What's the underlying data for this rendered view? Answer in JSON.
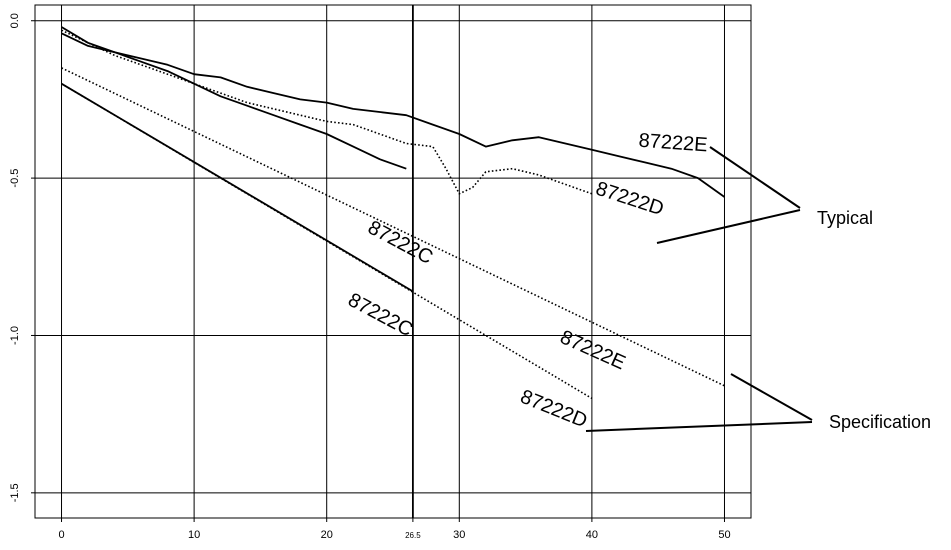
{
  "chart_data": {
    "type": "line",
    "xlabel": "",
    "ylabel": "",
    "xlim": [
      -2,
      52
    ],
    "ylim": [
      -1.58,
      0.05
    ],
    "x_ticks": [
      {
        "v": 0,
        "label": "0"
      },
      {
        "v": 10,
        "label": "10"
      },
      {
        "v": 20,
        "label": "20"
      },
      {
        "v": 26.5,
        "label": "26.5",
        "small": true
      },
      {
        "v": 30,
        "label": "30"
      },
      {
        "v": 40,
        "label": "40"
      },
      {
        "v": 50,
        "label": "50"
      }
    ],
    "y_ticks": [
      {
        "v": 0,
        "label": "0.0"
      },
      {
        "v": -0.5,
        "label": "-0.5"
      },
      {
        "v": -1.0,
        "label": "-1.0"
      },
      {
        "v": -1.5,
        "label": "-1.5"
      }
    ],
    "grid": true,
    "series": [
      {
        "name": "87222C",
        "group": "Specification",
        "style": "solid",
        "x": [
          0,
          26.5
        ],
        "y": [
          -0.2,
          -0.86
        ]
      },
      {
        "name": "87222D",
        "group": "Specification",
        "style": "dotted",
        "x": [
          0,
          40
        ],
        "y": [
          -0.2,
          -1.2
        ]
      },
      {
        "name": "87222E",
        "group": "Specification",
        "style": "dotted",
        "x": [
          0,
          50
        ],
        "y": [
          -0.15,
          -1.16
        ]
      },
      {
        "name": "87222C",
        "group": "Typical",
        "style": "solid",
        "x": [
          0,
          2,
          4,
          6,
          8,
          10,
          12,
          14,
          16,
          18,
          20,
          22,
          24,
          26
        ],
        "y": [
          -0.02,
          -0.07,
          -0.1,
          -0.13,
          -0.16,
          -0.2,
          -0.24,
          -0.27,
          -0.3,
          -0.33,
          -0.36,
          -0.4,
          -0.44,
          -0.47
        ]
      },
      {
        "name": "87222D",
        "group": "Typical",
        "style": "dotted",
        "x": [
          0,
          2,
          4,
          6,
          8,
          10,
          12,
          14,
          16,
          18,
          20,
          22,
          24,
          26,
          28,
          29,
          30,
          31,
          32,
          34,
          36,
          38,
          40
        ],
        "y": [
          -0.03,
          -0.07,
          -0.11,
          -0.14,
          -0.17,
          -0.2,
          -0.23,
          -0.26,
          -0.28,
          -0.3,
          -0.32,
          -0.33,
          -0.36,
          -0.39,
          -0.4,
          -0.47,
          -0.55,
          -0.53,
          -0.48,
          -0.47,
          -0.49,
          -0.52,
          -0.55
        ]
      },
      {
        "name": "87222E",
        "group": "Typical",
        "style": "solid",
        "x": [
          0,
          2,
          4,
          6,
          8,
          10,
          12,
          14,
          16,
          18,
          20,
          22,
          24,
          26,
          28,
          30,
          32,
          34,
          36,
          38,
          40,
          42,
          44,
          46,
          48,
          50
        ],
        "y": [
          -0.04,
          -0.08,
          -0.1,
          -0.12,
          -0.14,
          -0.17,
          -0.18,
          -0.21,
          -0.23,
          -0.25,
          -0.26,
          -0.28,
          -0.29,
          -0.3,
          -0.33,
          -0.36,
          -0.4,
          -0.38,
          -0.37,
          -0.39,
          -0.41,
          -0.43,
          -0.45,
          -0.47,
          -0.5,
          -0.56
        ]
      }
    ],
    "curve_labels": [
      {
        "text": "87222C",
        "x": 23,
        "y": -0.67,
        "rotate": 28
      },
      {
        "text": "87222D",
        "x": 40.2,
        "y": -0.55,
        "rotate": 18
      },
      {
        "text": "87222E",
        "x": 43.5,
        "y": -0.4,
        "rotate": 4
      },
      {
        "text": "87222C",
        "x": 21.5,
        "y": -0.9,
        "rotate": 28
      },
      {
        "text": "87222E",
        "x": 37.5,
        "y": -1.02,
        "rotate": 24
      },
      {
        "text": "87222D",
        "x": 34.5,
        "y": -1.21,
        "rotate": 22
      }
    ],
    "annotations": {
      "typical": "Typical",
      "specification": "Specification"
    }
  }
}
